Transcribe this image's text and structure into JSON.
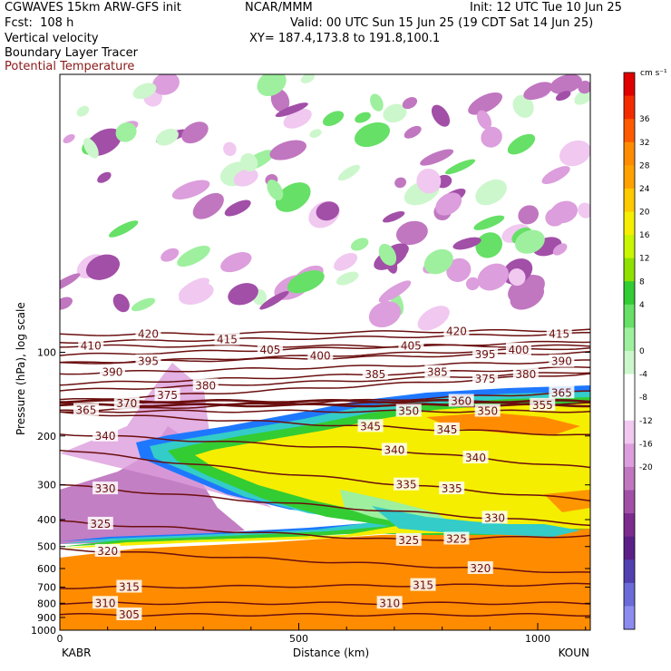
{
  "header": {
    "model": "CGWAVES 15km ARW-GFS init",
    "org": "NCAR/MMM",
    "init": "Init: 12 UTC Tue 10 Jun 25",
    "fcst": "Fcst:  108 h",
    "valid": "Valid: 00 UTC Sun 15 Jun 25 (19 CDT Sat 14 Jun 25)",
    "field1": "Vertical velocity",
    "xy": "XY= 187.4,173.8 to 191.8,100.1",
    "field2": "Boundary Layer Tracer",
    "field3": "Potential Temperature"
  },
  "chart_data": {
    "type": "heatmap",
    "title": "",
    "xlabel": "Distance (km)",
    "ylabel": "Pressure (hPa), log scale",
    "xlim": [
      0,
      1110
    ],
    "ylim": [
      1000,
      10
    ],
    "yscale": "log",
    "x_ticks": [
      0,
      500,
      1000
    ],
    "x_tick_labels": [
      "0",
      "500",
      "1000"
    ],
    "y_ticks": [
      100,
      200,
      300,
      400,
      500,
      600,
      700,
      800,
      900,
      1000
    ],
    "y_tick_labels": [
      "100",
      "200",
      "300",
      "400",
      "500",
      "600",
      "700",
      "800",
      "900",
      "1000"
    ],
    "endpoint_labels": {
      "left": "KABR",
      "right": "KOUN"
    },
    "colorbar": {
      "unit": "cm s⁻¹",
      "labels": [
        "36",
        "32",
        "28",
        "24",
        "20",
        "16",
        "12",
        "8",
        "4",
        "0",
        "-4",
        "-8",
        "-12",
        "-16",
        "-20"
      ],
      "colors": [
        "#e00000",
        "#f22c00",
        "#ff5a00",
        "#ff8c00",
        "#ffa200",
        "#ffca00",
        "#f5ee00",
        "#c8f500",
        "#8ee100",
        "#33cc33",
        "#66e066",
        "#9ef09e",
        "#ccf7cc",
        "#ffffff",
        "#ffffff",
        "#f0c8f0",
        "#dc9edc",
        "#c077c0",
        "#a24fa8",
        "#7c2b8e",
        "#5a2088",
        "#5040b0",
        "#6a6ad8",
        "#8c8cf0"
      ]
    },
    "shading": [
      {
        "name": "surface-orange-layer",
        "color": "#ff8c00"
      },
      {
        "name": "tracer-yellow-plume",
        "color": "#f5ee00"
      },
      {
        "name": "tracer-green-band",
        "color": "#33cc33"
      },
      {
        "name": "tracer-cyan-band",
        "color": "#33ccc8"
      },
      {
        "name": "tracer-blue-edge",
        "color": "#1e78ff"
      },
      {
        "name": "ascent-light-green-cells",
        "color": "#a8f0a8"
      },
      {
        "name": "descent-purple-cells",
        "color": "#b868b8"
      }
    ],
    "theta_contours": [
      {
        "value": 305,
        "label_x": [
          145
        ],
        "label_p": [
          880
        ]
      },
      {
        "value": 310,
        "label_x": [
          95,
          690
        ],
        "label_p": [
          800,
          800
        ]
      },
      {
        "value": 315,
        "label_x": [
          145,
          760
        ],
        "label_p": [
          700,
          690
        ]
      },
      {
        "value": 320,
        "label_x": [
          100,
          880
        ],
        "label_p": [
          520,
          600
        ]
      },
      {
        "value": 325,
        "label_x": [
          85,
          730,
          830
        ],
        "label_p": [
          415,
          475,
          470
        ]
      },
      {
        "value": 330,
        "label_x": [
          95,
          910
        ],
        "label_p": [
          310,
          395
        ]
      },
      {
        "value": 335,
        "label_x": [
          725,
          820
        ],
        "label_p": [
          300,
          310
        ]
      },
      {
        "value": 340,
        "label_x": [
          95,
          700,
          870
        ],
        "label_p": [
          200,
          225,
          240
        ]
      },
      {
        "value": 345,
        "label_x": [
          650,
          810
        ],
        "label_p": [
          185,
          190
        ]
      },
      {
        "value": 350,
        "label_x": [
          730,
          895
        ],
        "label_p": [
          163,
          163
        ]
      },
      {
        "value": 355,
        "label_x": [
          1010
        ],
        "label_p": [
          155
        ]
      },
      {
        "value": 360,
        "label_x": [
          840
        ],
        "label_p": [
          150
        ]
      },
      {
        "value": 365,
        "label_x": [
          55,
          1050
        ],
        "label_p": [
          162,
          140
        ]
      },
      {
        "value": 370,
        "label_x": [
          140
        ],
        "label_p": [
          153
        ]
      },
      {
        "value": 375,
        "label_x": [
          225,
          890
        ],
        "label_p": [
          143,
          125
        ]
      },
      {
        "value": 380,
        "label_x": [
          305,
          975
        ],
        "label_p": [
          132,
          120
        ]
      },
      {
        "value": 385,
        "label_x": [
          660,
          790
        ],
        "label_p": [
          120,
          118
        ]
      },
      {
        "value": 390,
        "label_x": [
          110,
          1050
        ],
        "label_p": [
          118,
          108
        ]
      },
      {
        "value": 395,
        "label_x": [
          185,
          890
        ],
        "label_p": [
          108,
          102
        ]
      },
      {
        "value": 400,
        "label_x": [
          545,
          960
        ],
        "label_p": [
          103,
          98
        ]
      },
      {
        "value": 405,
        "label_x": [
          440,
          735
        ],
        "label_p": [
          98,
          95
        ]
      },
      {
        "value": 410,
        "label_x": [
          65
        ],
        "label_p": [
          95
        ]
      },
      {
        "value": 415,
        "label_x": [
          350,
          1045
        ],
        "label_p": [
          90,
          86
        ]
      },
      {
        "value": 420,
        "label_x": [
          185,
          830
        ],
        "label_p": [
          86,
          84
        ]
      }
    ]
  }
}
